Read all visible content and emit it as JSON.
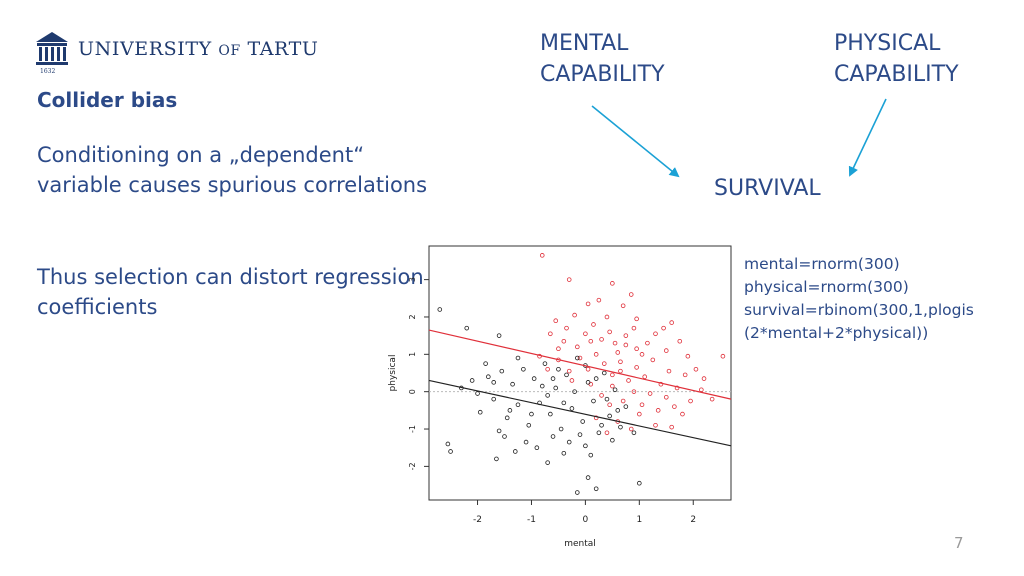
{
  "logo": {
    "name_main": "UNIVERSITY",
    "name_of": "OF",
    "name_end": "TARTU",
    "year": "1632",
    "icon": "university-building-icon"
  },
  "heading": "Collider bias",
  "points": [
    "Conditioning on a „dependent“ variable causes spurious correlations",
    "Thus selection can distort regression coefficients"
  ],
  "diagram": {
    "mental": "MENTAL CAPABILITY",
    "physical": "PHYSICAL CAPABILITY",
    "survival": "SURVIVAL",
    "arrow_color": "#1ba1d5"
  },
  "code_lines": [
    "mental=rnorm(300)",
    "physical=rnorm(300)",
    "survival=rbinom(300,1,plogis",
    "(2*mental+2*physical))"
  ],
  "page_number": "7",
  "colors": {
    "text": "#2c4a88",
    "survived": "#e0303a",
    "not_survived": "#222222"
  },
  "chart_data": {
    "type": "scatter",
    "xlabel": "mental",
    "ylabel": "physical",
    "xlim": [
      -2.9,
      2.7
    ],
    "ylim": [
      -2.9,
      3.9
    ],
    "xticks": [
      -2,
      -1,
      0,
      1,
      2
    ],
    "yticks": [
      -2,
      -1,
      0,
      1,
      2,
      3
    ],
    "grid": false,
    "series": [
      {
        "color": "#e0303a",
        "points": [
          [
            -0.8,
            3.65
          ],
          [
            -0.3,
            3.0
          ],
          [
            0.05,
            2.35
          ],
          [
            0.5,
            2.9
          ],
          [
            0.7,
            2.3
          ],
          [
            0.85,
            2.6
          ],
          [
            0.4,
            2.0
          ],
          [
            0.95,
            1.95
          ],
          [
            -0.65,
            1.55
          ],
          [
            -0.55,
            1.9
          ],
          [
            -0.35,
            1.7
          ],
          [
            -0.15,
            1.2
          ],
          [
            0.15,
            1.8
          ],
          [
            0.3,
            1.4
          ],
          [
            0.45,
            1.6
          ],
          [
            0.6,
            1.05
          ],
          [
            0.75,
            1.5
          ],
          [
            0.95,
            1.15
          ],
          [
            1.15,
            1.3
          ],
          [
            1.3,
            1.55
          ],
          [
            1.45,
            1.7
          ],
          [
            1.6,
            1.85
          ],
          [
            1.75,
            1.35
          ],
          [
            1.9,
            0.95
          ],
          [
            2.05,
            0.6
          ],
          [
            2.15,
            0.05
          ],
          [
            2.2,
            0.35
          ],
          [
            2.35,
            -0.2
          ],
          [
            2.55,
            0.95
          ],
          [
            -0.85,
            0.95
          ],
          [
            -0.7,
            0.6
          ],
          [
            -0.5,
            0.85
          ],
          [
            -0.3,
            0.55
          ],
          [
            -0.1,
            0.9
          ],
          [
            0.05,
            0.6
          ],
          [
            0.2,
            1.0
          ],
          [
            0.35,
            0.75
          ],
          [
            0.5,
            0.45
          ],
          [
            0.65,
            0.8
          ],
          [
            0.8,
            0.3
          ],
          [
            0.95,
            0.65
          ],
          [
            1.1,
            0.4
          ],
          [
            1.25,
            0.85
          ],
          [
            1.4,
            0.2
          ],
          [
            1.55,
            0.55
          ],
          [
            1.7,
            0.1
          ],
          [
            1.85,
            0.45
          ],
          [
            -0.25,
            0.3
          ],
          [
            0.1,
            0.2
          ],
          [
            0.3,
            -0.1
          ],
          [
            0.5,
            0.15
          ],
          [
            0.7,
            -0.25
          ],
          [
            0.9,
            0.0
          ],
          [
            1.05,
            -0.35
          ],
          [
            1.2,
            -0.05
          ],
          [
            1.35,
            -0.5
          ],
          [
            1.5,
            -0.15
          ],
          [
            1.65,
            -0.4
          ],
          [
            1.8,
            -0.6
          ],
          [
            0.6,
            -0.8
          ],
          [
            0.85,
            -1.0
          ],
          [
            1.0,
            -0.6
          ],
          [
            1.3,
            -0.9
          ],
          [
            0.4,
            -1.1
          ],
          [
            0.2,
            -0.7
          ],
          [
            0.45,
            -0.35
          ],
          [
            -0.4,
            1.35
          ],
          [
            0.0,
            1.55
          ],
          [
            0.55,
            1.3
          ],
          [
            0.75,
            1.25
          ],
          [
            1.05,
            1.0
          ],
          [
            1.5,
            1.1
          ],
          [
            -0.2,
            2.05
          ],
          [
            0.25,
            2.45
          ],
          [
            -0.5,
            1.15
          ],
          [
            0.1,
            1.35
          ],
          [
            0.65,
            0.55
          ],
          [
            1.6,
            -0.95
          ],
          [
            1.95,
            -0.25
          ],
          [
            0.9,
            1.7
          ]
        ]
      },
      {
        "color": "#222222",
        "points": [
          [
            -2.7,
            2.2
          ],
          [
            -2.2,
            1.7
          ],
          [
            -1.6,
            1.5
          ],
          [
            -2.55,
            -1.4
          ],
          [
            -2.5,
            -1.6
          ],
          [
            -1.65,
            -1.8
          ],
          [
            -1.3,
            -1.6
          ],
          [
            -0.7,
            -1.9
          ],
          [
            -0.4,
            -1.65
          ],
          [
            0.0,
            -1.45
          ],
          [
            0.05,
            -2.3
          ],
          [
            0.2,
            -2.6
          ],
          [
            -0.15,
            -2.7
          ],
          [
            1.0,
            -2.45
          ],
          [
            0.5,
            -1.3
          ],
          [
            0.9,
            -1.1
          ],
          [
            -2.3,
            0.1
          ],
          [
            -2.1,
            0.3
          ],
          [
            -1.95,
            -0.55
          ],
          [
            -1.85,
            0.75
          ],
          [
            -1.7,
            -0.2
          ],
          [
            -1.55,
            0.55
          ],
          [
            -1.45,
            -0.7
          ],
          [
            -1.35,
            0.2
          ],
          [
            -1.25,
            -0.35
          ],
          [
            -1.15,
            0.6
          ],
          [
            -1.05,
            -0.9
          ],
          [
            -0.95,
            0.35
          ],
          [
            -0.85,
            -0.3
          ],
          [
            -0.75,
            0.75
          ],
          [
            -0.65,
            -0.6
          ],
          [
            -0.55,
            0.1
          ],
          [
            -0.45,
            -1.0
          ],
          [
            -0.35,
            0.45
          ],
          [
            -0.25,
            -0.45
          ],
          [
            -0.15,
            0.9
          ],
          [
            -0.05,
            -0.8
          ],
          [
            0.05,
            0.25
          ],
          [
            0.15,
            -0.25
          ],
          [
            0.25,
            -1.1
          ],
          [
            0.35,
            0.5
          ],
          [
            0.45,
            -0.65
          ],
          [
            0.55,
            0.05
          ],
          [
            0.65,
            -0.95
          ],
          [
            0.75,
            -0.4
          ],
          [
            -1.6,
            -1.05
          ],
          [
            -1.5,
            -1.2
          ],
          [
            -1.1,
            -1.35
          ],
          [
            -0.9,
            -1.5
          ],
          [
            -0.6,
            -1.2
          ],
          [
            -0.3,
            -1.35
          ],
          [
            -0.1,
            -1.15
          ],
          [
            0.1,
            -1.7
          ],
          [
            0.3,
            -0.9
          ],
          [
            -2.0,
            -0.05
          ],
          [
            -1.8,
            0.4
          ],
          [
            -1.25,
            0.9
          ],
          [
            -0.8,
            0.15
          ],
          [
            -0.5,
            0.6
          ],
          [
            -0.2,
            0.0
          ],
          [
            0.0,
            0.7
          ],
          [
            0.2,
            0.35
          ],
          [
            0.4,
            -0.2
          ],
          [
            -1.4,
            -0.5
          ],
          [
            -0.7,
            -0.1
          ],
          [
            -0.4,
            -0.3
          ],
          [
            -1.0,
            -0.6
          ],
          [
            0.6,
            -0.5
          ],
          [
            -1.7,
            0.25
          ],
          [
            -0.6,
            0.35
          ]
        ]
      }
    ],
    "fit_lines": [
      {
        "color": "#e0303a",
        "x": [
          -2.9,
          2.7
        ],
        "y": [
          1.65,
          -0.2
        ]
      },
      {
        "color": "#222222",
        "x": [
          -2.9,
          2.7
        ],
        "y": [
          0.3,
          -1.45
        ]
      }
    ],
    "reference_line": {
      "y": 0,
      "color": "#bbbbbb",
      "style": "dotted"
    }
  }
}
